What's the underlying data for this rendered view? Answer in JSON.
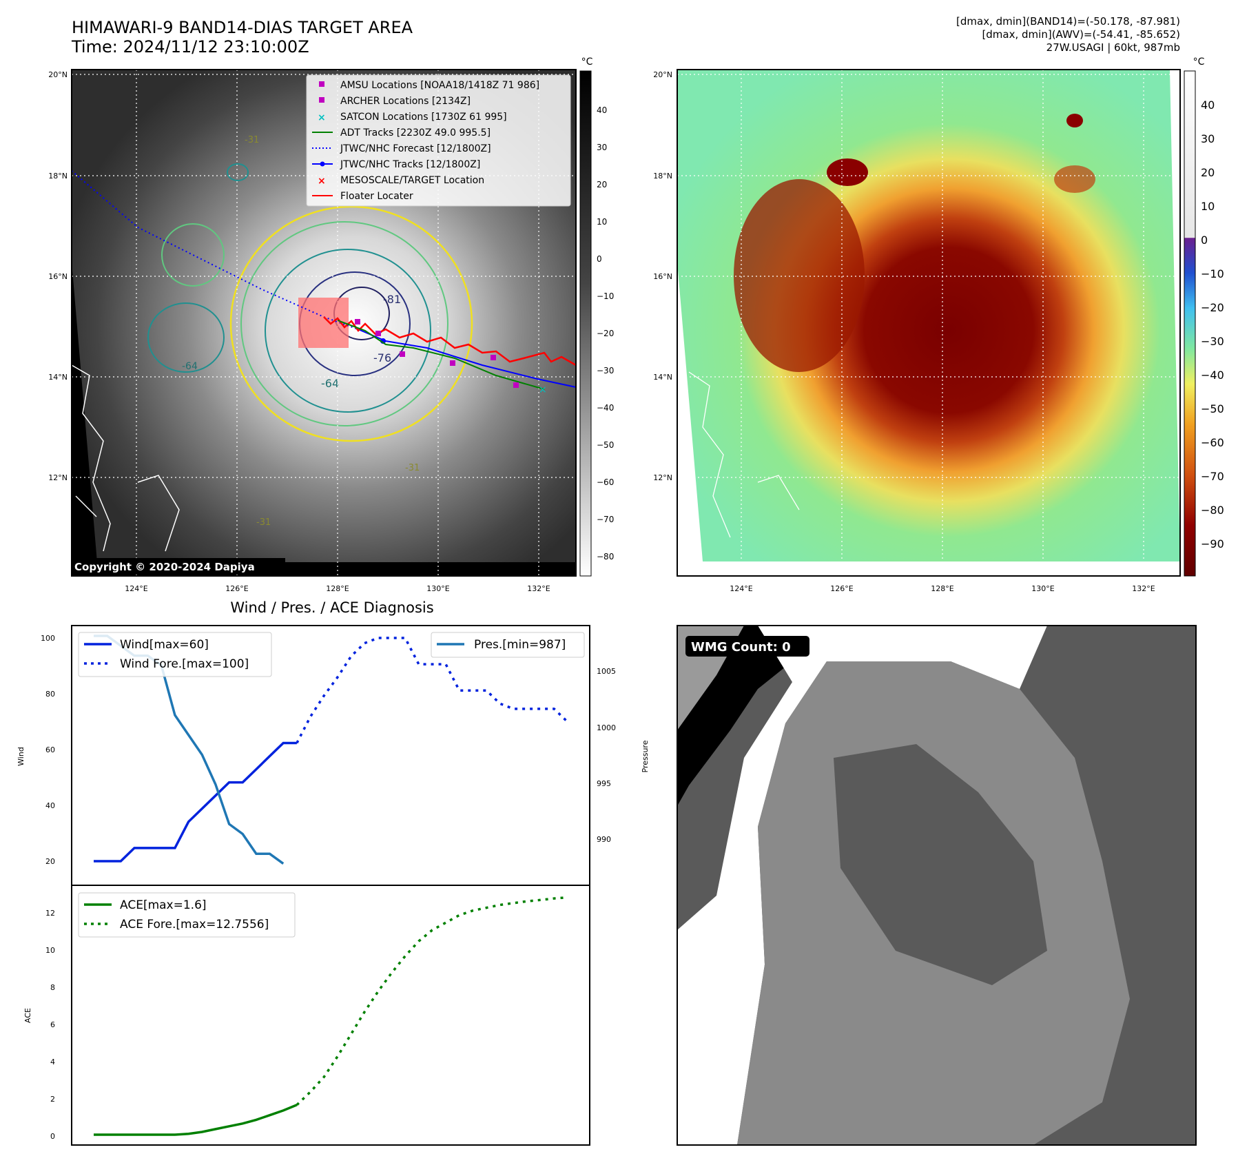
{
  "header": {
    "title_line1": "HIMAWARI-9 BAND14-DIAS TARGET AREA",
    "title_line2": "Time: 2024/11/12 23:10:00Z",
    "info_line1": "[dmax, dmin](BAND14)=(-50.178, -87.981)",
    "info_line2": "[dmax, dmin](AWV)=(-54.41, -85.652)",
    "info_line3": "27W.USAGI | 60kt, 987mb"
  },
  "map_left": {
    "lat_labels": [
      "20°N",
      "18°N",
      "16°N",
      "14°N",
      "12°N"
    ],
    "lon_labels": [
      "124°E",
      "126°E",
      "128°E",
      "130°E",
      "132°E"
    ],
    "copyright": "Copyright © 2020-2024 Dapiya",
    "contour_labels": [
      "-81",
      "-76",
      "-64",
      "-64",
      "-31",
      "-31",
      "-31"
    ],
    "legend": [
      {
        "label": "AMSU Locations [NOAA18/1418Z 71 986]",
        "marker": "square",
        "color": "#c000c0"
      },
      {
        "label": "ARCHER Locations [2134Z]",
        "marker": "square",
        "color": "#c000c0"
      },
      {
        "label": "SATCON Locations [1730Z 61 995]",
        "marker": "x",
        "color": "#00c0c0"
      },
      {
        "label": "ADT Tracks [2230Z 49.0 995.5]",
        "marker": "line",
        "color": "#008000"
      },
      {
        "label": "JTWC/NHC Forecast [12/1800Z]",
        "marker": "dotted",
        "color": "#0000ff"
      },
      {
        "label": "JTWC/NHC Tracks [12/1800Z]",
        "marker": "line-dot",
        "color": "#0000ff"
      },
      {
        "label": "MESOSCALE/TARGET Location",
        "marker": "x",
        "color": "#ff0000"
      },
      {
        "label": "Floater Locater",
        "marker": "line",
        "color": "#ff0000"
      }
    ],
    "colorbar_unit": "°C",
    "colorbar_ticks": [
      "40",
      "30",
      "20",
      "10",
      "0",
      "−10",
      "−20",
      "−30",
      "−40",
      "−50",
      "−60",
      "−70",
      "−80"
    ]
  },
  "map_right": {
    "lat_labels": [
      "20°N",
      "18°N",
      "16°N",
      "14°N",
      "12°N"
    ],
    "lon_labels": [
      "124°E",
      "126°E",
      "128°E",
      "130°E",
      "132°E"
    ],
    "colorbar_unit": "°C",
    "colorbar_ticks": [
      "40",
      "30",
      "20",
      "10",
      "0",
      "−10",
      "−20",
      "−30",
      "−40",
      "−50",
      "−60",
      "−70",
      "−80",
      "−90"
    ]
  },
  "wind_panel": {
    "title": "Wind / Pres. / ACE Diagnosis",
    "ylabel_left": "Wind",
    "ylabel_right": "Pressure",
    "wind_ticks": [
      "100",
      "80",
      "60",
      "40",
      "20"
    ],
    "pres_ticks": [
      "1005",
      "1000",
      "995",
      "990"
    ],
    "legend_left": [
      "Wind[max=60]",
      "Wind Fore.[max=100]"
    ],
    "legend_right": [
      "Pres.[min=987]"
    ]
  },
  "ace_panel": {
    "ylabel": "ACE",
    "ticks": [
      "12",
      "10",
      "8",
      "6",
      "4",
      "2",
      "0"
    ],
    "legend": [
      "ACE[max=1.6]",
      "ACE Fore.[max=12.7556]"
    ]
  },
  "wmg_panel": {
    "label": "WMG Count: 0"
  },
  "chart_data": [
    {
      "type": "line",
      "x": [
        0,
        1,
        2,
        3,
        4,
        5,
        6,
        7,
        8,
        9,
        10,
        11,
        12,
        13,
        14,
        15
      ],
      "series": [
        {
          "name": "Wind[max=60]",
          "axis": "left",
          "x": [
            0,
            1,
            2,
            3,
            4,
            5,
            6,
            7,
            8,
            9,
            10,
            11,
            12,
            13,
            14,
            15
          ],
          "values": [
            15,
            15,
            15,
            20,
            20,
            20,
            20,
            30,
            35,
            40,
            45,
            45,
            50,
            55,
            60,
            60
          ]
        },
        {
          "name": "Wind Fore.[max=100]",
          "axis": "left",
          "x": [
            15,
            16,
            17,
            18,
            19,
            20,
            21,
            22,
            23,
            24,
            25,
            26,
            27,
            28,
            29,
            30,
            31,
            32,
            33,
            34,
            35
          ],
          "values": [
            60,
            70,
            78,
            85,
            93,
            98,
            100,
            100,
            100,
            90,
            90,
            90,
            80,
            80,
            80,
            75,
            73,
            73,
            73,
            73,
            68
          ]
        },
        {
          "name": "Pres.[min=987]",
          "axis": "right",
          "x": [
            0,
            1,
            2,
            3,
            4,
            5,
            6,
            7,
            8,
            9,
            10,
            11,
            12,
            13,
            14
          ],
          "values": [
            1010,
            1010,
            1009,
            1008,
            1008,
            1007,
            1002,
            1000,
            998,
            995,
            991,
            990,
            988,
            988,
            987
          ]
        }
      ],
      "ylim_left": [
        15,
        101
      ],
      "ylim_right": [
        986,
        1010
      ],
      "legend_left": "top-left",
      "legend_right": "top-right"
    },
    {
      "type": "line",
      "series": [
        {
          "name": "ACE[max=1.6]",
          "x": [
            0,
            1,
            2,
            3,
            4,
            5,
            6,
            7,
            8,
            9,
            10,
            11,
            12,
            13,
            14,
            15
          ],
          "values": [
            0,
            0,
            0,
            0,
            0,
            0,
            0,
            0.05,
            0.15,
            0.3,
            0.45,
            0.6,
            0.8,
            1.05,
            1.3,
            1.6
          ]
        },
        {
          "name": "ACE Fore.[max=12.7556]",
          "x": [
            15,
            16,
            17,
            18,
            19,
            20,
            21,
            22,
            23,
            24,
            25,
            26,
            27,
            28,
            29,
            30,
            31,
            32,
            33,
            34,
            35
          ],
          "values": [
            1.6,
            2.3,
            3.1,
            4.2,
            5.4,
            6.6,
            7.7,
            8.7,
            9.6,
            10.4,
            11.0,
            11.4,
            11.8,
            12.05,
            12.2,
            12.35,
            12.45,
            12.55,
            12.62,
            12.7,
            12.7556
          ]
        }
      ],
      "ylim": [
        -0.4,
        13.3
      ],
      "legend": "top-left"
    }
  ]
}
